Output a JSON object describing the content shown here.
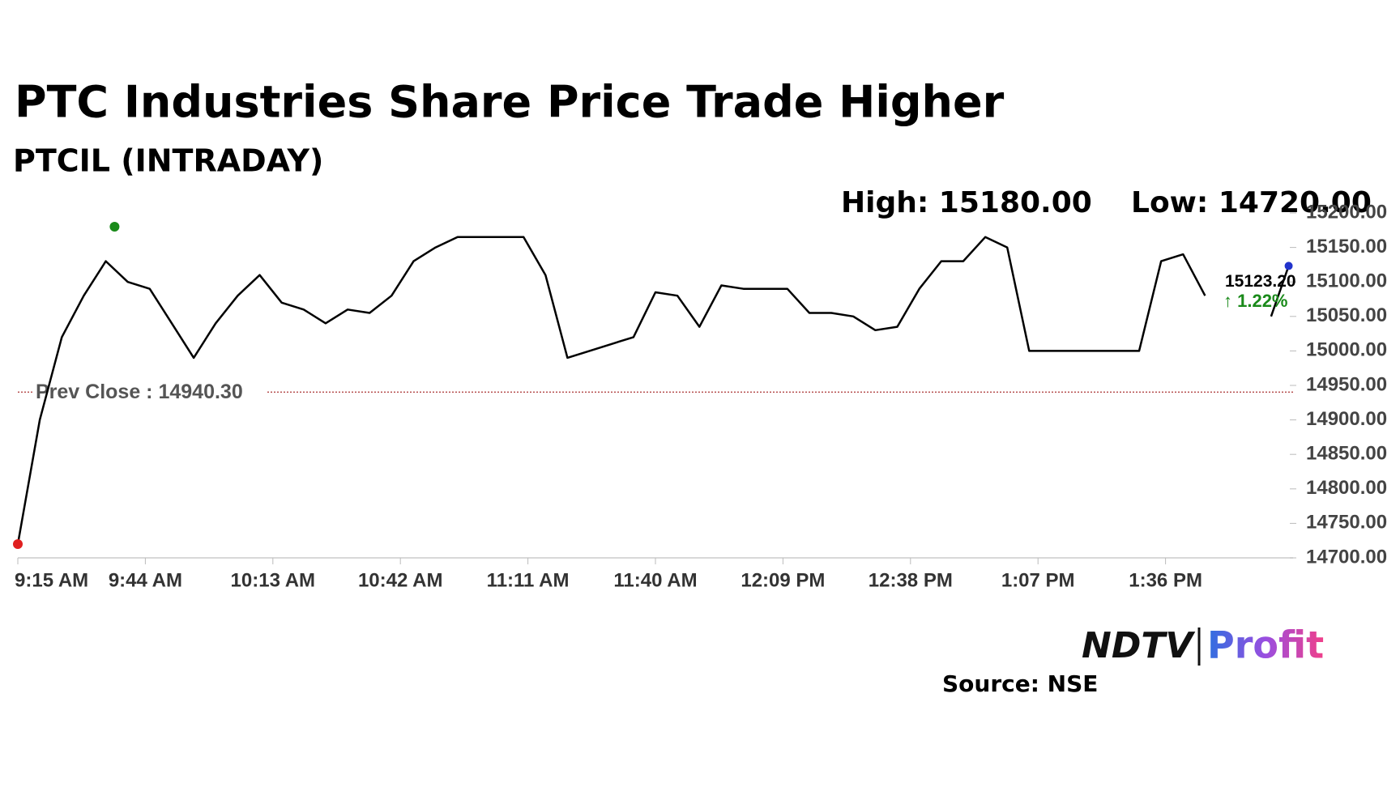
{
  "chart_data": {
    "type": "line",
    "title": "PTC Industries Share Price Trade Higher",
    "subtitle": "PTCIL (INTRADAY)",
    "high": {
      "value": 15180,
      "label": "High: 15180.00",
      "time": "9:37 AM",
      "color": "#1a8a1a"
    },
    "low": {
      "value": 14720,
      "label": "Low: 14720.00",
      "time": "9:15 AM",
      "color": "#e02020"
    },
    "prev_close": {
      "value": 14940.3,
      "label": "Prev Close : 14940.30"
    },
    "last": {
      "value": 15123.2,
      "label": "15123.20",
      "time": "2:04 PM"
    },
    "change": {
      "value": 1.22,
      "label": "↑ 1.22%"
    },
    "color": "#000000",
    "x": [
      "9:15 AM",
      "9:20 AM",
      "9:25 AM",
      "9:30 AM",
      "9:35 AM",
      "9:40 AM",
      "9:45 AM",
      "9:50 AM",
      "9:55 AM",
      "10:00 AM",
      "10:05 AM",
      "10:10 AM",
      "10:15 AM",
      "10:20 AM",
      "10:25 AM",
      "10:30 AM",
      "10:35 AM",
      "10:40 AM",
      "10:45 AM",
      "10:50 AM",
      "10:55 AM",
      "11:00 AM",
      "11:05 AM",
      "11:10 AM",
      "11:15 AM",
      "11:20 AM",
      "11:25 AM",
      "11:30 AM",
      "11:35 AM",
      "11:40 AM",
      "11:45 AM",
      "11:50 AM",
      "11:55 AM",
      "12:00 PM",
      "12:05 PM",
      "12:10 PM",
      "12:15 PM",
      "12:20 PM",
      "12:25 PM",
      "12:30 PM",
      "12:35 PM",
      "12:40 PM",
      "12:45 PM",
      "12:50 PM",
      "12:55 PM",
      "1:00 PM",
      "1:05 PM",
      "1:10 PM",
      "1:15 PM",
      "1:20 PM",
      "1:25 PM",
      "1:30 PM",
      "1:35 PM",
      "1:40 PM",
      "1:45 PM",
      "1:50 PM",
      "1:55 PM",
      "2:00 PM",
      "2:04 PM"
    ],
    "values": [
      14720,
      14900,
      15020,
      15080,
      15130,
      15100,
      15090,
      15040,
      14990,
      15040,
      15080,
      15110,
      15070,
      15060,
      15040,
      15060,
      15055,
      15080,
      15130,
      15150,
      15165,
      15165,
      15165,
      15165,
      15110,
      14990,
      15000,
      15010,
      15020,
      15085,
      15080,
      15035,
      15095,
      15090,
      15090,
      15090,
      15055,
      15055,
      15050,
      15030,
      15035,
      15090,
      15130,
      15130,
      15165,
      15150,
      15000,
      15000,
      15000,
      15000,
      15000,
      15000,
      15130,
      15140,
      15080,
      null,
      null,
      15050,
      15123.2
    ],
    "xlim": [
      "9:15 AM",
      "2:05 PM"
    ],
    "xticks": [
      "9:15 AM",
      "9:44 AM",
      "10:13 AM",
      "10:42 AM",
      "11:11 AM",
      "11:40 AM",
      "12:09 PM",
      "12:38 PM",
      "1:07 PM",
      "1:36 PM"
    ],
    "ylim": [
      14700,
      15200
    ],
    "yticks": [
      {
        "value": 14700,
        "label": "14700.00"
      },
      {
        "value": 14750,
        "label": "14750.00"
      },
      {
        "value": 14800,
        "label": "14800.00"
      },
      {
        "value": 14850,
        "label": "14850.00"
      },
      {
        "value": 14900,
        "label": "14900.00"
      },
      {
        "value": 14950,
        "label": "14950.00"
      },
      {
        "value": 15000,
        "label": "15000.00"
      },
      {
        "value": 15050,
        "label": "15050.00"
      },
      {
        "value": 15100,
        "label": "15100.00"
      },
      {
        "value": 15150,
        "label": "15150.00"
      },
      {
        "value": 15200,
        "label": "15200.00"
      }
    ],
    "brand": {
      "left": "NDTV",
      "right": "Profit"
    },
    "source": "Source: NSE"
  }
}
